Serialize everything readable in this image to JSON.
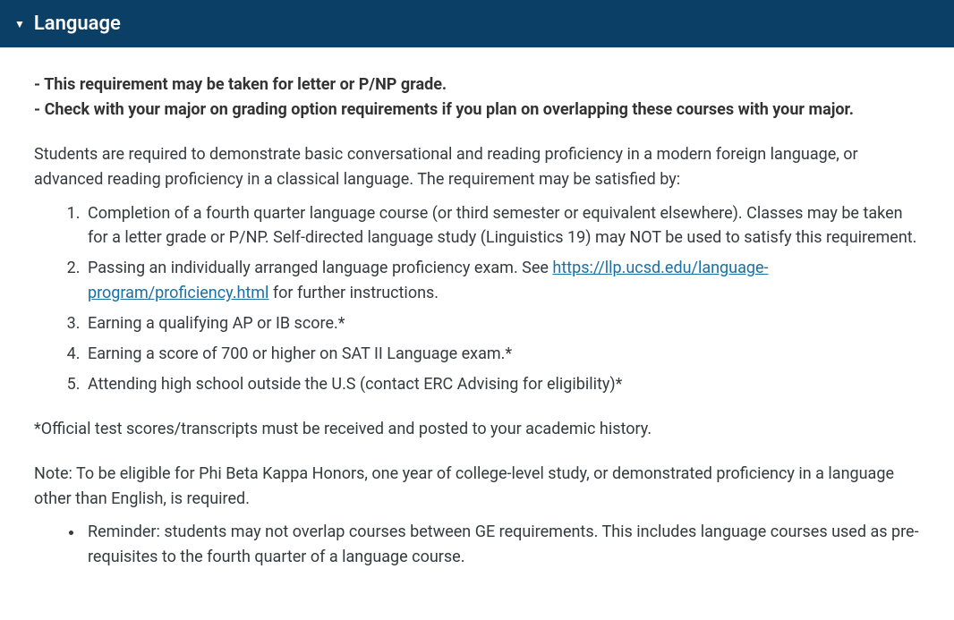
{
  "header": {
    "title": "Language",
    "expanded_icon": "▼"
  },
  "notes": {
    "line1": "- This requirement may be taken for letter or P/NP grade.",
    "line2": "- Check with your major on grading option requirements if you plan on overlapping these courses with your major."
  },
  "intro": "Students are required to demonstrate basic conversational and reading proficiency in a modern foreign language, or advanced reading proficiency in a classical language. The requirement may be satisfied by:",
  "list": {
    "item1": "Completion of a fourth quarter language course (or third semester or equivalent elsewhere). Classes may be taken for a letter grade or P/NP. Self-directed language study (Linguistics 19) may NOT be used to satisfy this requirement.",
    "item2_pre": "Passing an individually arranged language proficiency exam. See ",
    "item2_link_text": "https://llp.ucsd.edu/language-program/proficiency.html",
    "item2_link_href": "https://llp.ucsd.edu/language-program/proficiency.html",
    "item2_post": " for further instructions.",
    "item3": "Earning a qualifying AP or IB score.*",
    "item4": "Earning a score of 700 or higher on SAT II Language exam.*",
    "item5": "Attending high school outside the U.S (contact ERC Advising for eligibility)*"
  },
  "footnote": "*Official test scores/transcripts must be received and posted to your academic history.",
  "note2": "Note: To be eligible for Phi Beta Kappa Honors, one year of college-level study, or demonstrated proficiency in a language other than English, is required.",
  "reminder": "Reminder: students may not overlap courses between GE requirements.  This includes language courses used as pre-requisites to the fourth quarter of a language course.",
  "colors": {
    "header_bg": "#0b3f66",
    "header_text": "#ffffff",
    "body_text": "#353a3e",
    "link": "#1a6fa5",
    "background": "#ffffff"
  }
}
